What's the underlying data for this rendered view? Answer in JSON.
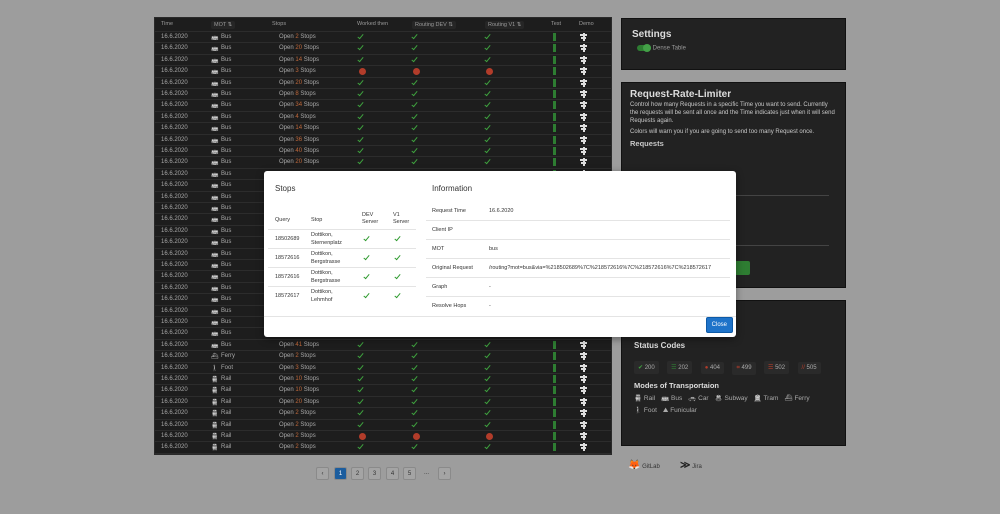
{
  "table": {
    "headers": {
      "time": "Time",
      "mot": "MOT",
      "stops": "Stops",
      "worked": "Worked then",
      "dev": "Routing DEV",
      "v1": "Routing V1",
      "test": "Test",
      "demo": "Demo"
    },
    "open_label": "Open",
    "stops_label": "Stops",
    "rows": [
      {
        "time": "16.6.2020",
        "mot": "Bus",
        "count": "2",
        "status": "ok"
      },
      {
        "time": "16.6.2020",
        "mot": "Bus",
        "count": "20",
        "status": "ok"
      },
      {
        "time": "16.6.2020",
        "mot": "Bus",
        "count": "14",
        "status": "ok"
      },
      {
        "time": "16.6.2020",
        "mot": "Bus",
        "count": "3",
        "status": "error"
      },
      {
        "time": "16.6.2020",
        "mot": "Bus",
        "count": "20",
        "status": "ok"
      },
      {
        "time": "16.6.2020",
        "mot": "Bus",
        "count": "8",
        "status": "ok"
      },
      {
        "time": "16.6.2020",
        "mot": "Bus",
        "count": "34",
        "status": "ok"
      },
      {
        "time": "16.6.2020",
        "mot": "Bus",
        "count": "4",
        "status": "ok"
      },
      {
        "time": "16.6.2020",
        "mot": "Bus",
        "count": "14",
        "status": "ok"
      },
      {
        "time": "16.6.2020",
        "mot": "Bus",
        "count": "36",
        "status": "ok"
      },
      {
        "time": "16.6.2020",
        "mot": "Bus",
        "count": "40",
        "status": "ok"
      },
      {
        "time": "16.6.2020",
        "mot": "Bus",
        "count": "20",
        "status": "ok"
      },
      {
        "time": "16.6.2020",
        "mot": "Bus",
        "count": "",
        "status": "ok"
      },
      {
        "time": "16.6.2020",
        "mot": "Bus",
        "count": "",
        "status": "ok"
      },
      {
        "time": "16.6.2020",
        "mot": "Bus",
        "count": "",
        "status": "ok"
      },
      {
        "time": "16.6.2020",
        "mot": "Bus",
        "count": "",
        "status": "ok"
      },
      {
        "time": "16.6.2020",
        "mot": "Bus",
        "count": "",
        "status": "ok"
      },
      {
        "time": "16.6.2020",
        "mot": "Bus",
        "count": "",
        "status": "ok"
      },
      {
        "time": "16.6.2020",
        "mot": "Bus",
        "count": "",
        "status": "ok"
      },
      {
        "time": "16.6.2020",
        "mot": "Bus",
        "count": "",
        "status": "ok"
      },
      {
        "time": "16.6.2020",
        "mot": "Bus",
        "count": "",
        "status": "ok"
      },
      {
        "time": "16.6.2020",
        "mot": "Bus",
        "count": "",
        "status": "ok"
      },
      {
        "time": "16.6.2020",
        "mot": "Bus",
        "count": "",
        "status": "ok"
      },
      {
        "time": "16.6.2020",
        "mot": "Bus",
        "count": "",
        "status": "ok"
      },
      {
        "time": "16.6.2020",
        "mot": "Bus",
        "count": "",
        "status": "ok"
      },
      {
        "time": "16.6.2020",
        "mot": "Bus",
        "count": "",
        "status": "ok"
      },
      {
        "time": "16.6.2020",
        "mot": "Bus",
        "count": "",
        "status": "ok"
      },
      {
        "time": "16.6.2020",
        "mot": "Bus",
        "count": "41",
        "status": "ok"
      },
      {
        "time": "16.6.2020",
        "mot": "Ferry",
        "count": "2",
        "status": "ok"
      },
      {
        "time": "16.6.2020",
        "mot": "Foot",
        "count": "3",
        "status": "ok"
      },
      {
        "time": "16.6.2020",
        "mot": "Rail",
        "count": "10",
        "status": "ok"
      },
      {
        "time": "16.6.2020",
        "mot": "Rail",
        "count": "10",
        "status": "ok"
      },
      {
        "time": "16.6.2020",
        "mot": "Rail",
        "count": "20",
        "status": "ok"
      },
      {
        "time": "16.6.2020",
        "mot": "Rail",
        "count": "2",
        "status": "ok"
      },
      {
        "time": "16.6.2020",
        "mot": "Rail",
        "count": "2",
        "status": "ok"
      },
      {
        "time": "16.6.2020",
        "mot": "Rail",
        "count": "2",
        "status": "error"
      },
      {
        "time": "16.6.2020",
        "mot": "Rail",
        "count": "2",
        "status": "ok"
      },
      {
        "time": "16.6.2020",
        "mot": "Rail",
        "count": "",
        "status": "ok"
      }
    ]
  },
  "pagination": {
    "pages": [
      "1",
      "2",
      "3",
      "4",
      "5"
    ],
    "ellipsis": "...",
    "prev": "‹",
    "next": "›",
    "active": "1"
  },
  "settings": {
    "title": "Settings",
    "dense_table": "Dense Table",
    "dense_on": true
  },
  "rate_limiter": {
    "title": "Request-Rate-Limiter",
    "desc1": "Control how many Requests in a specific Time you want to send. Currently the requests will be sent all once and the Time indicates just when it will send Requests again.",
    "desc2": "Colors will warn you if you are going to send too many Request once.",
    "requests_label": "Requests"
  },
  "status_codes": {
    "title": "Status Codes",
    "codes": [
      "200",
      "202",
      "404",
      "499",
      "502",
      "505"
    ]
  },
  "modes": {
    "title": "Modes of Transportaion",
    "items": [
      "Rail",
      "Bus",
      "Car",
      "Subway",
      "Tram",
      "Ferry",
      "Foot",
      "Funicular"
    ]
  },
  "footer": {
    "gitlab": "GitLab",
    "jira": "Jira"
  },
  "modal": {
    "stops_title": "Stops",
    "info_title": "Information",
    "stops_headers": {
      "query": "Query",
      "stop": "Stop",
      "dev": "DEV Server",
      "v1": "V1 Server"
    },
    "stops": [
      {
        "query": "18502689",
        "stop": "Dottikon, Sternenplatz"
      },
      {
        "query": "18572616",
        "stop": "Dottikon, Bergstrasse"
      },
      {
        "query": "18572616",
        "stop": "Dottikon, Bergstrasse"
      },
      {
        "query": "18572617",
        "stop": "Dottikon, Lehmhof"
      }
    ],
    "info": [
      {
        "label": "Request Time",
        "value": "16.6.2020"
      },
      {
        "label": "Client IP",
        "value": ""
      },
      {
        "label": "MOT",
        "value": "bus"
      },
      {
        "label": "Original Request",
        "value": "/routing?mot=bus&via=%218502689%7C%218572616%7C%218572616%7C%218572617"
      },
      {
        "label": "Graph",
        "value": "-"
      },
      {
        "label": "Resolve Hops",
        "value": "-"
      }
    ],
    "close": "Close"
  },
  "colors": {
    "ok": "#3fa33f",
    "error": "#b23c2a",
    "accent": "#1e73c9"
  }
}
